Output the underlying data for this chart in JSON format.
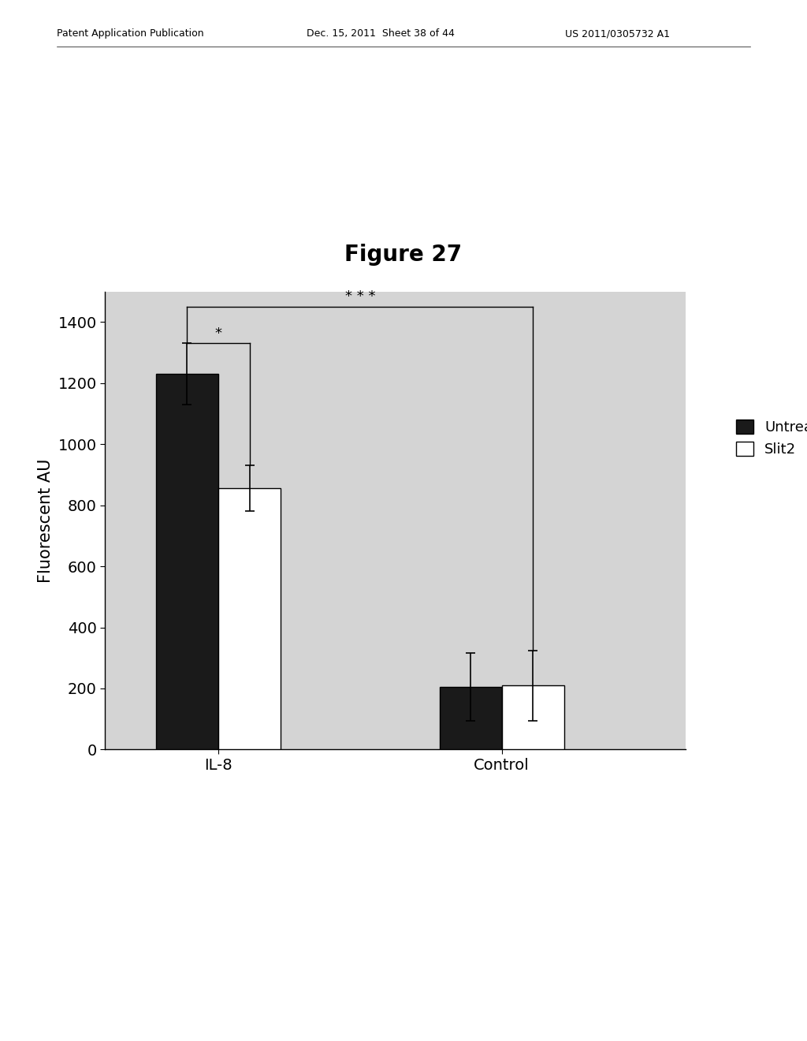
{
  "title": "Figure 27",
  "ylabel": "Fluorescent AU",
  "groups": [
    "IL-8",
    "Control"
  ],
  "series": [
    "Untreated",
    "Slit2"
  ],
  "values": {
    "IL-8": [
      1230,
      855
    ],
    "Control": [
      205,
      210
    ]
  },
  "errors": {
    "IL-8": [
      100,
      75
    ],
    "Control": [
      110,
      115
    ]
  },
  "bar_colors": [
    "#1a1a1a",
    "#ffffff"
  ],
  "bar_edgecolor": "#000000",
  "ylim": [
    0,
    1500
  ],
  "yticks": [
    0,
    200,
    400,
    600,
    800,
    1000,
    1200,
    1400
  ],
  "plot_bg_color": "#d4d4d4",
  "fig_bg_color": "#ffffff",
  "title_fontsize": 20,
  "axis_fontsize": 15,
  "tick_fontsize": 14,
  "legend_fontsize": 13,
  "bar_width": 0.22,
  "group_positions": [
    1.0,
    2.0
  ],
  "xlim": [
    0.6,
    2.65
  ],
  "header_left": "Patent Application Publication",
  "header_mid": "Dec. 15, 2011  Sheet 38 of 44",
  "header_right": "US 2011/0305732 A1"
}
